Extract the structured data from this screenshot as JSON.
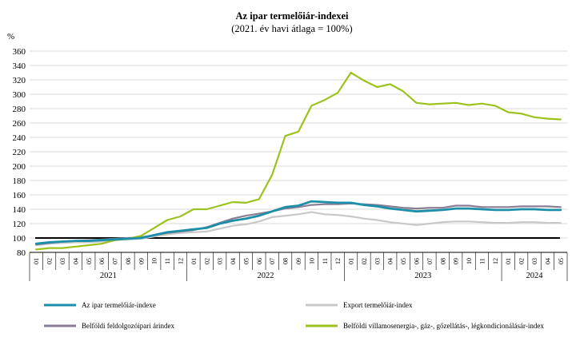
{
  "chart_data": {
    "type": "line",
    "title": "Az ipar termelőiár-indexei",
    "subtitle": "(2021. év havi átlaga = 100%)",
    "ylabel": "%",
    "xlabel": "",
    "ylim": [
      80,
      360
    ],
    "yticks": [
      80,
      100,
      120,
      140,
      160,
      180,
      200,
      220,
      240,
      260,
      280,
      300,
      320,
      340,
      360
    ],
    "grid": true,
    "legend_position": "bottom",
    "reference_line": 100,
    "months": [
      "01",
      "02",
      "03",
      "04",
      "05",
      "06",
      "07",
      "08",
      "09",
      "10",
      "11",
      "12",
      "01",
      "02",
      "03",
      "04",
      "05",
      "06",
      "07",
      "08",
      "09",
      "10",
      "11",
      "12",
      "01",
      "02",
      "03",
      "04",
      "05",
      "06",
      "07",
      "08",
      "09",
      "10",
      "11",
      "12",
      "01",
      "02",
      "03",
      "04",
      "05"
    ],
    "years": [
      {
        "label": "2021",
        "start": 0,
        "count": 12
      },
      {
        "label": "2022",
        "start": 12,
        "count": 12
      },
      {
        "label": "2023",
        "start": 24,
        "count": 12
      },
      {
        "label": "2024",
        "start": 36,
        "count": 5
      }
    ],
    "colors": {
      "ipar": "#1b8fa8",
      "export": "#c8c8c8",
      "feldolgozo": "#8a7e95",
      "villamos": "#9cc21d",
      "reference": "#000000",
      "grid": "#d9d9d9"
    },
    "series": [
      {
        "key": "ipar",
        "name": "Az ipar termelőiár-indexe",
        "values": [
          92,
          94,
          95,
          96,
          96,
          97,
          98,
          99,
          100,
          104,
          108,
          110,
          112,
          114,
          120,
          124,
          127,
          131,
          137,
          143,
          145,
          151,
          150,
          149,
          149,
          146,
          144,
          141,
          139,
          137,
          138,
          139,
          141,
          141,
          140,
          139,
          139,
          140,
          140,
          139,
          139
        ]
      },
      {
        "key": "export",
        "name": "Export termelőiár-index",
        "values": [
          90,
          92,
          93,
          94,
          94,
          95,
          97,
          98,
          99,
          102,
          105,
          107,
          108,
          109,
          113,
          117,
          119,
          123,
          129,
          131,
          133,
          136,
          133,
          132,
          130,
          127,
          125,
          122,
          120,
          118,
          120,
          122,
          123,
          123,
          122,
          121,
          121,
          122,
          122,
          121,
          121
        ]
      },
      {
        "key": "feldolgozo",
        "name": "Belföldi feldolgozóipari árindex",
        "values": [
          91,
          93,
          95,
          96,
          97,
          98,
          99,
          100,
          101,
          104,
          107,
          109,
          111,
          115,
          121,
          127,
          131,
          134,
          137,
          141,
          143,
          146,
          147,
          147,
          148,
          147,
          146,
          144,
          142,
          141,
          142,
          142,
          145,
          145,
          143,
          143,
          143,
          144,
          144,
          144,
          143
        ]
      },
      {
        "key": "villamos",
        "name": "Belföldi villamosenergia-, gáz-, gőzellátás-, légkondicionálásár-index",
        "values": [
          84,
          86,
          86,
          88,
          90,
          92,
          97,
          99,
          103,
          114,
          125,
          130,
          140,
          140,
          145,
          150,
          149,
          154,
          188,
          242,
          248,
          284,
          292,
          302,
          330,
          319,
          310,
          314,
          304,
          288,
          286,
          287,
          288,
          285,
          287,
          284,
          275,
          273,
          268,
          266,
          265
        ]
      }
    ],
    "legend": [
      {
        "key": "ipar",
        "label": "Az ipar termelőiár-indexe",
        "color": "#1b8fa8"
      },
      {
        "key": "export",
        "label": "Export termelőiár-index",
        "color": "#c8c8c8"
      },
      {
        "key": "feldolgozo",
        "label": "Belföldi feldolgozóipari árindex",
        "color": "#8a7e95"
      },
      {
        "key": "villamos",
        "label": "Belföldi villamosenergia-, gáz-, gőzellátás-, légkondicionálásár-index",
        "color": "#9cc21d"
      }
    ]
  }
}
